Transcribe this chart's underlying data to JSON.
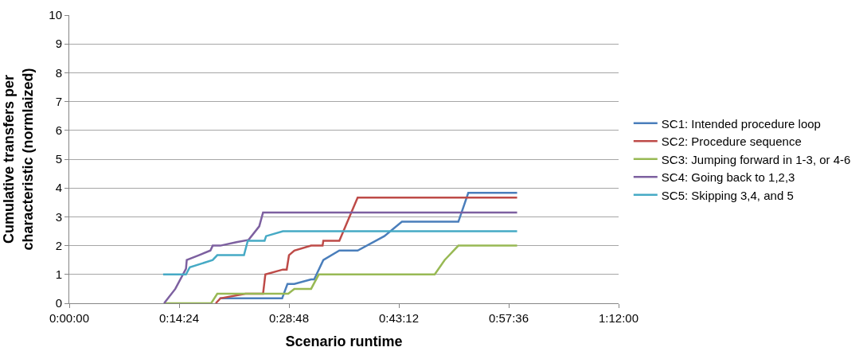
{
  "chart_data": {
    "type": "line",
    "xlabel": "Scenario runtime",
    "ylabel": "Cumulative transfers per characteristic (normlaized)",
    "xlim": [
      0,
      72
    ],
    "xticks": [
      {
        "value": 0,
        "label": "0:00:00"
      },
      {
        "value": 14.4,
        "label": "0:14:24"
      },
      {
        "value": 28.8,
        "label": "0:28:48"
      },
      {
        "value": 43.2,
        "label": "0:43:12"
      },
      {
        "value": 57.6,
        "label": "0:57:36"
      },
      {
        "value": 72,
        "label": "1:12:00"
      }
    ],
    "ylim": [
      0,
      10
    ],
    "yticks": [
      0,
      1,
      2,
      3,
      4,
      5,
      6,
      7,
      8,
      9,
      10
    ],
    "grid": "y",
    "legend": "right",
    "marker": "none",
    "line_style": "solid",
    "series": [
      {
        "name": "SC1: Intended procedure loop",
        "color": "#4a7ebb",
        "x": [
          19.7,
          27.9,
          28.6,
          29.5,
          31.7,
          32.1,
          33.3,
          35.4,
          37.8,
          41.3,
          43.6,
          51.0,
          52.3,
          58.7
        ],
        "values": [
          0.17,
          0.17,
          0.67,
          0.67,
          0.83,
          0.83,
          1.5,
          1.83,
          1.83,
          2.33,
          2.83,
          2.83,
          3.83,
          3.83
        ]
      },
      {
        "name": "SC2: Procedure sequence",
        "color": "#be4b48",
        "x": [
          19.2,
          19.8,
          23.1,
          25.4,
          25.7,
          28.0,
          28.5,
          28.8,
          29.5,
          31.7,
          33.2,
          33.3,
          35.4,
          37.8,
          58.7
        ],
        "values": [
          0,
          0.17,
          0.33,
          0.33,
          1.0,
          1.17,
          1.17,
          1.67,
          1.83,
          2.0,
          2.0,
          2.17,
          2.17,
          3.67,
          3.67
        ]
      },
      {
        "name": "SC3: Jumping forward in 1-3, or 4-6",
        "color": "#98b954",
        "x": [
          12.4,
          18.6,
          19.4,
          28.7,
          29.5,
          31.7,
          32.7,
          47.9,
          49.2,
          51.0,
          58.7
        ],
        "values": [
          0,
          0,
          0.33,
          0.33,
          0.5,
          0.5,
          1.0,
          1.0,
          1.5,
          2.0,
          2.0
        ]
      },
      {
        "name": "SC4: Going back to 1,2,3",
        "color": "#7d60a0",
        "x": [
          12.43,
          13.9,
          15.3,
          15.4,
          17.0,
          18.5,
          18.8,
          19.8,
          21.9,
          23.5,
          24.9,
          25.4,
          58.7
        ],
        "values": [
          0,
          0.5,
          1.2,
          1.5,
          1.67,
          1.83,
          2.0,
          2.0,
          2.12,
          2.2,
          2.67,
          3.15,
          3.15
        ]
      },
      {
        "name": "SC5: Skipping 3,4, and 5",
        "color": "#46aac5",
        "x": [
          12.3,
          15.3,
          15.8,
          18.8,
          19.4,
          22.9,
          23.4,
          25.6,
          25.8,
          28.0,
          58.7
        ],
        "values": [
          1.0,
          1.0,
          1.25,
          1.5,
          1.67,
          1.67,
          2.17,
          2.17,
          2.33,
          2.5,
          2.5
        ]
      }
    ]
  }
}
